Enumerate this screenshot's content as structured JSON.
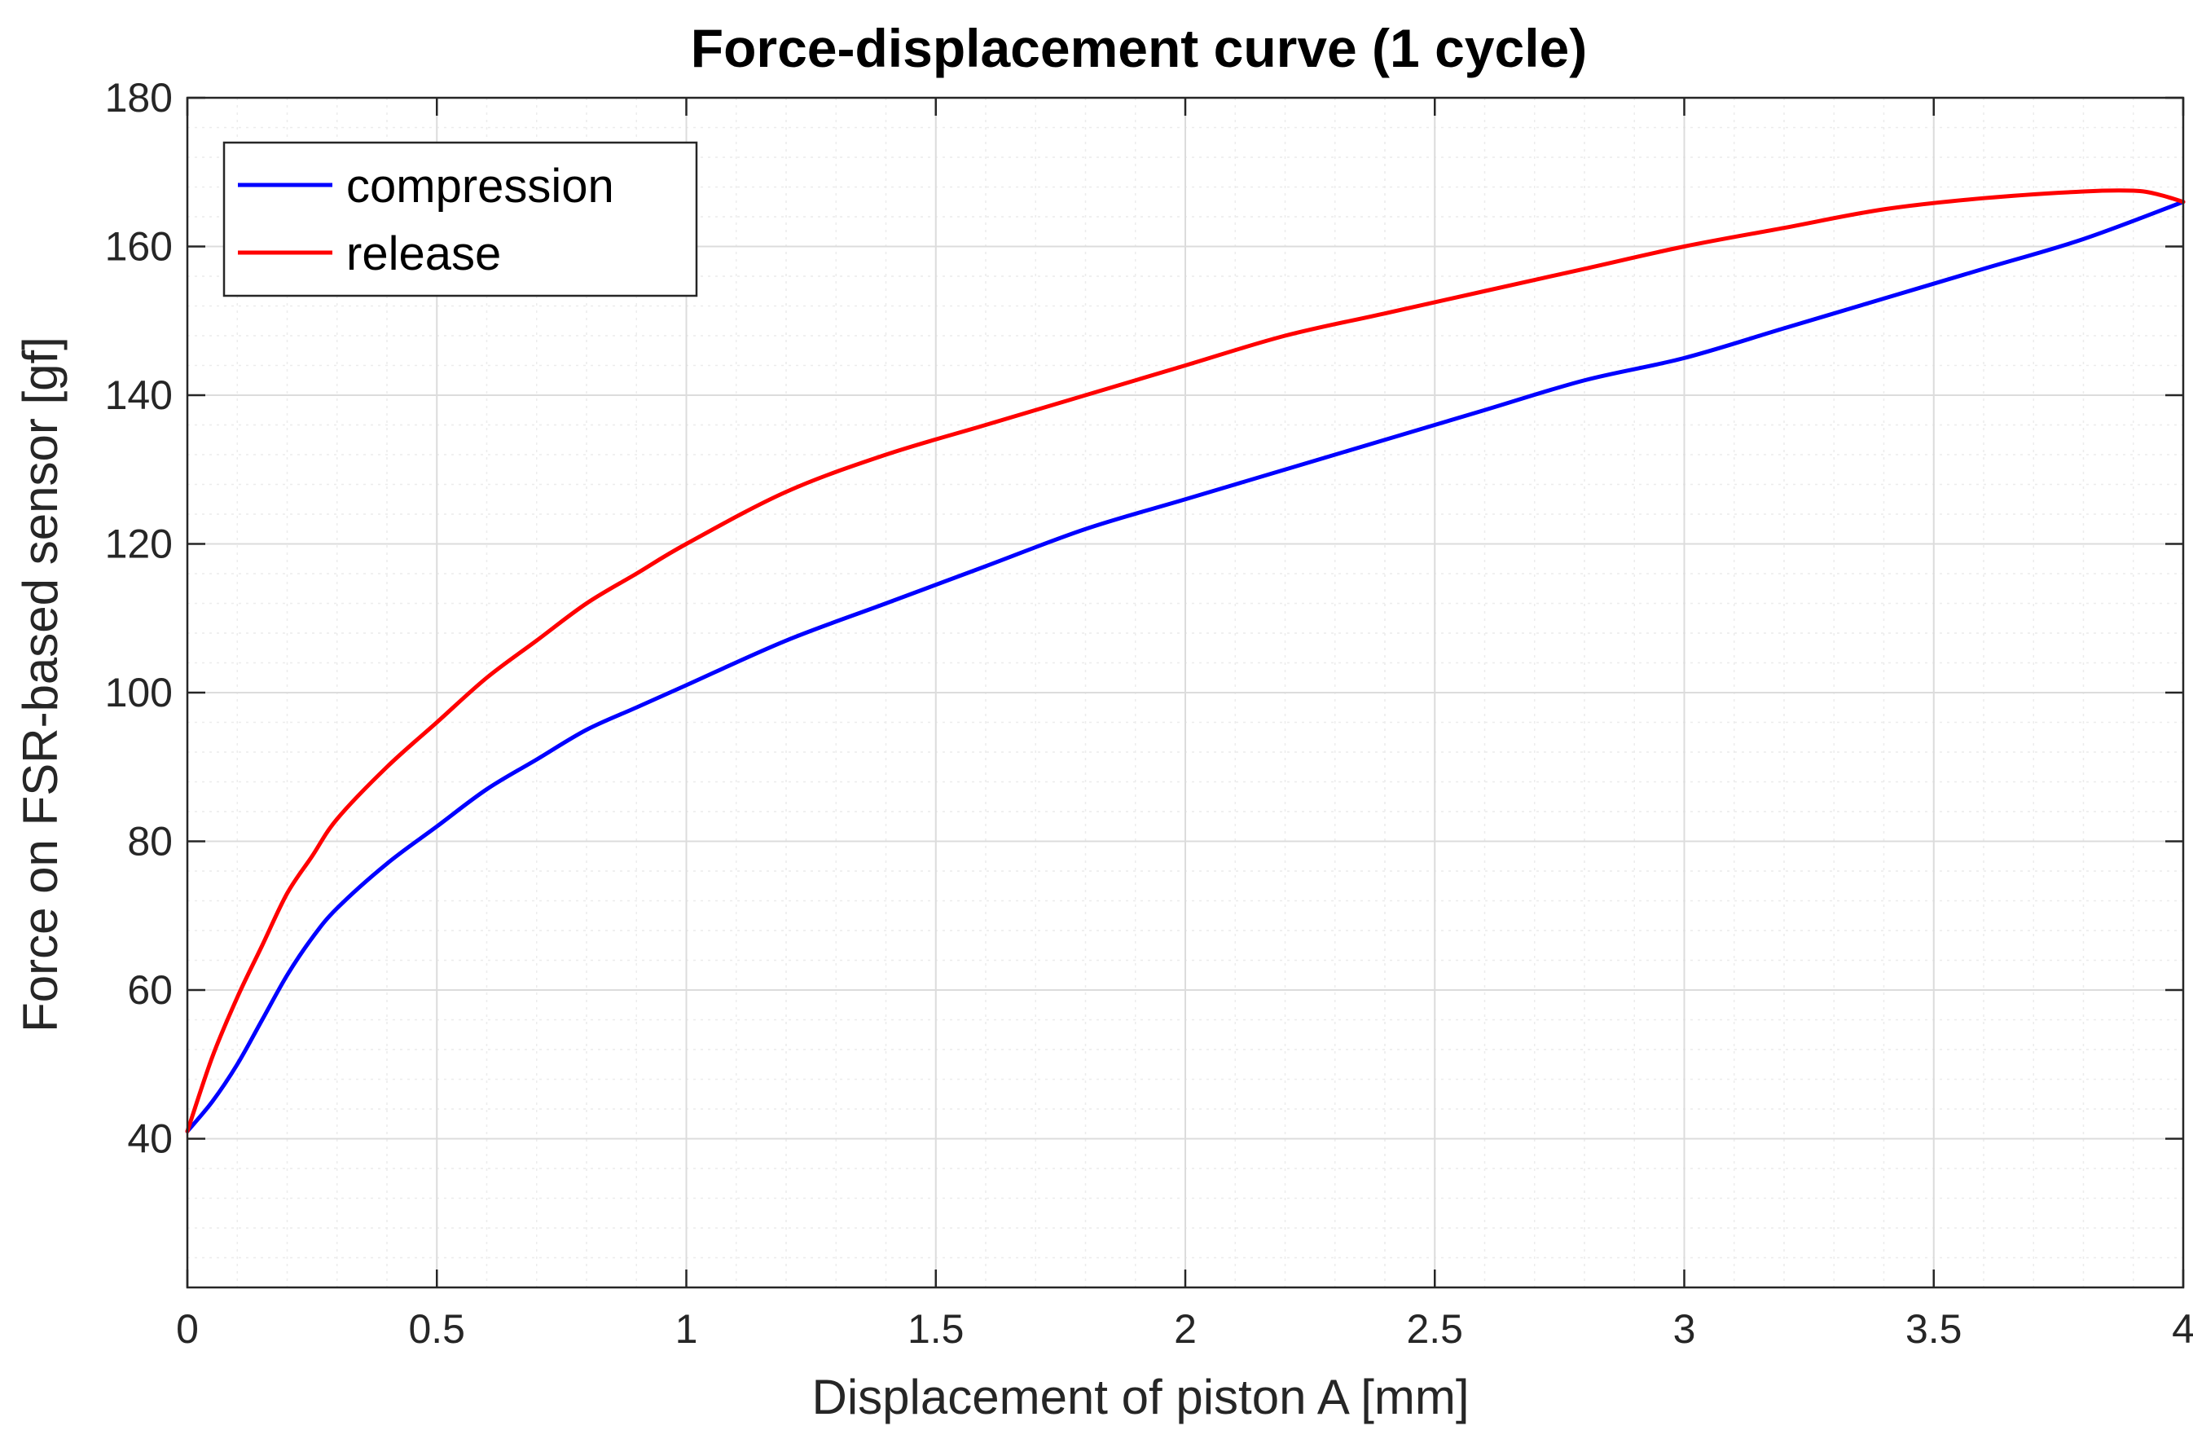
{
  "chart_data": {
    "type": "line",
    "title": "Force-displacement curve (1 cycle)",
    "xlabel": "Displacement of piston A [mm]",
    "ylabel": "Force on FSR-based sensor [gf]",
    "xlim": [
      0,
      4
    ],
    "ylim": [
      20,
      180
    ],
    "xticks": [
      0,
      0.5,
      1,
      1.5,
      2,
      2.5,
      3,
      3.5,
      4
    ],
    "xtick_labels": [
      "0",
      "0.5",
      "1",
      "1.5",
      "2",
      "2.5",
      "3",
      "3.5",
      "4"
    ],
    "yticks": [
      40,
      60,
      80,
      100,
      120,
      140,
      160,
      180
    ],
    "ytick_labels": [
      "40",
      "60",
      "80",
      "100",
      "120",
      "140",
      "160",
      "180"
    ],
    "grid": true,
    "minor_grid": true,
    "legend_position": "top-left",
    "series": [
      {
        "name": "compression",
        "color": "#0000ff",
        "x": [
          0.0,
          0.05,
          0.1,
          0.15,
          0.2,
          0.25,
          0.3,
          0.4,
          0.5,
          0.6,
          0.7,
          0.8,
          0.9,
          1.0,
          1.2,
          1.4,
          1.6,
          1.8,
          2.0,
          2.2,
          2.4,
          2.6,
          2.8,
          3.0,
          3.2,
          3.4,
          3.6,
          3.8,
          4.0
        ],
        "y": [
          41,
          45,
          50,
          56,
          62,
          67,
          71,
          77,
          82,
          87,
          91,
          95,
          98,
          101,
          107,
          112,
          117,
          122,
          126,
          130,
          134,
          138,
          142,
          145,
          149,
          153,
          157,
          161,
          166
        ]
      },
      {
        "name": "release",
        "color": "#ff0000",
        "x": [
          4.0,
          3.95,
          3.9,
          3.8,
          3.6,
          3.4,
          3.2,
          3.0,
          2.8,
          2.6,
          2.4,
          2.2,
          2.0,
          1.8,
          1.6,
          1.4,
          1.2,
          1.0,
          0.9,
          0.8,
          0.7,
          0.6,
          0.5,
          0.4,
          0.3,
          0.25,
          0.2,
          0.15,
          0.1,
          0.05,
          0.0
        ],
        "y": [
          166,
          167,
          167.5,
          167.4,
          166.5,
          165,
          162.5,
          160,
          157,
          154,
          151,
          148,
          144,
          140,
          136,
          132,
          127,
          120,
          116,
          112,
          107,
          102,
          96,
          90,
          83,
          78,
          73,
          66,
          59,
          51,
          41
        ]
      }
    ]
  }
}
